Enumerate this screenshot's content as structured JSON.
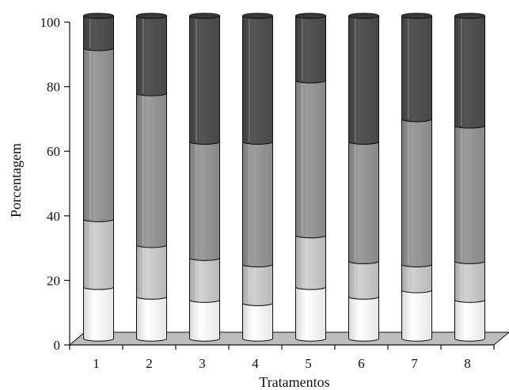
{
  "chart_data": {
    "type": "bar",
    "stacked": true,
    "three_d": true,
    "xlabel": "Tratamentos",
    "ylabel": "Porcentagem",
    "ylim": [
      0,
      100
    ],
    "yticks": [
      0,
      20,
      40,
      60,
      80,
      100
    ],
    "grid": false,
    "categories": [
      "1",
      "2",
      "3",
      "4",
      "5",
      "6",
      "7",
      "8"
    ],
    "series": [
      {
        "values": [
          16,
          13,
          12,
          11,
          16,
          13,
          15,
          12
        ],
        "color": "#f2f2f2"
      },
      {
        "values": [
          21,
          16,
          13,
          12,
          16,
          11,
          8,
          12
        ],
        "color": "#c4c4c4"
      },
      {
        "values": [
          53,
          47,
          36,
          38,
          48,
          37,
          45,
          42
        ],
        "color": "#8f8f8f"
      },
      {
        "values": [
          10,
          24,
          39,
          39,
          20,
          39,
          32,
          34
        ],
        "color": "#4a4a4a"
      }
    ]
  }
}
